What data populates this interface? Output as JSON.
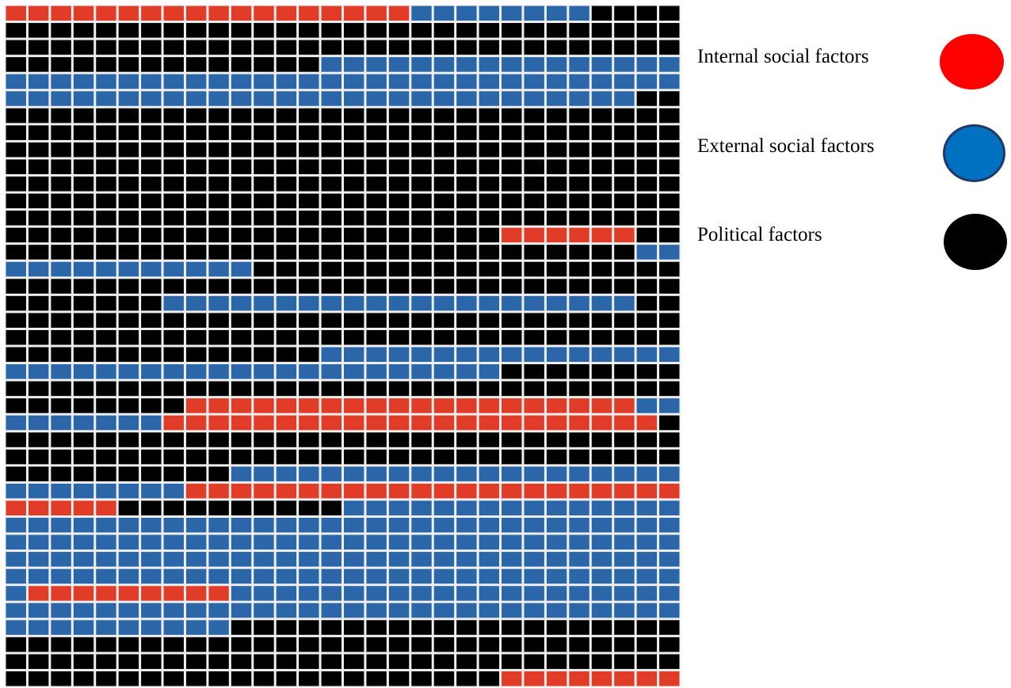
{
  "chart_data": {
    "type": "waffle",
    "rows": 40,
    "cols": 30,
    "legend_placement": "right",
    "categories": [
      {
        "key": "I",
        "label": "Internal social factors",
        "cell_color": "#e03c28",
        "marker_color": "#ff0000"
      },
      {
        "key": "E",
        "label": "External social factors",
        "cell_color": "#2a66a8",
        "marker_color": "#0070c0",
        "marker_border": "#1f3864"
      },
      {
        "key": "P",
        "label": "Political factors",
        "cell_color": "#000000",
        "marker_color": "#000000"
      }
    ],
    "grid": [
      "IIIIIIIIIIIIIIIIIIEEEEEEEEPPPP",
      "PPPPPPPPPPPPPPPPPPPPPPPPPPPPPP",
      "PPPPPPPPPPPPPPPPPPPPPPPPPPPPPP",
      "PPPPPPPPPPPPPPEEEEEEEEEEEEEEEE",
      "EEEEEEEEEEEEEEEEEEEEEEEEEEEEEE",
      "EEEEEEEEEEEEEEEEEEEEEEEEEEEEPP",
      "PPPPPPPPPPPPPPPPPPPPPPPPPPPPPP",
      "PPPPPPPPPPPPPPPPPPPPPPPPPPPPPP",
      "PPPPPPPPPPPPPPPPPPPPPPPPPPPPPP",
      "PPPPPPPPPPPPPPPPPPPPPPPPPPPPPP",
      "PPPPPPPPPPPPPPPPPPPPPPPPPPPPPP",
      "PPPPPPPPPPPPPPPPPPPPPPPPPPPPPP",
      "PPPPPPPPPPPPPPPPPPPPPPPPPPPPPP",
      "PPPPPPPPPPPPPPPPPPPPPPIIIIIIPP",
      "PPPPPPPPPPPPPPPPPPPPPPPPPPPPEE",
      "EEEEEEEEEEEPPPPPPPPPPPPPPPPPPP",
      "PPPPPPPPPPPPPPPPPPPPPPPPPPPPPP",
      "PPPPPPPEEEEEEEEEEEEEEEEEEEEEPP",
      "PPPPPPPPPPPPPPPPPPPPPPPPPPPPPP",
      "PPPPPPPPPPPPPPPPPPPPPPPPPPPPPP",
      "PPPPPPPPPPPPPPEEEEEEEEEEEEEEEE",
      "EEEEEEEEEEEEEEEEEEEEEEPPPPPPPP",
      "PPPPPPPPPPPPPPPPPPPPPPPPPPPPPP",
      "PPPPPPPPIIIIIIIIIIIIIIIIIIIIEE",
      "EEEEEEEIIIIIIIIIIIIIIIIIIIIIIP",
      "PPPPPPPPPPPPPPPPPPPPPPPPPPPPPP",
      "PPPPPPPPPPPPPPPPPPPPPPPPPPPPPP",
      "PPPPPPPPPPEEEEEEEEEEEEEEEEEEEE",
      "EEEEEEEEIIIIIIIIIIIIIIIIIIIIII",
      "IIIIIPPPPPPPPPPEEEEEEEEEEEEEEE",
      "EEEEEEEEEEEEEEEEEEEEEEEEEEEEEE",
      "EEEEEEEEEEEEEEEEEEEEEEEEEEEEEE",
      "EEEEEEEEEEEEEEEEEEEEEEEEEEEEEE",
      "EEEEEEEEEEEEEEEEEEEEEEEEEEEEEE",
      "EIIIIIIIIIEEEEEEEEEEEEEEEEEEEE",
      "EEEEEEEEEEEEEEEEEEEEEEEEEEEEEE",
      "EEEEEEEEEEPPPPPPPPPPPPPPPPPPPP",
      "PPPPPPPPPPPPPPPPPPPPPPPPPPPPPP",
      "PPPPPPPPPPPPPPPPPPPPPPPPPPPPPP",
      "PPPPPPPPPPPPPPPPPPPPPPIIIIIIII"
    ]
  }
}
